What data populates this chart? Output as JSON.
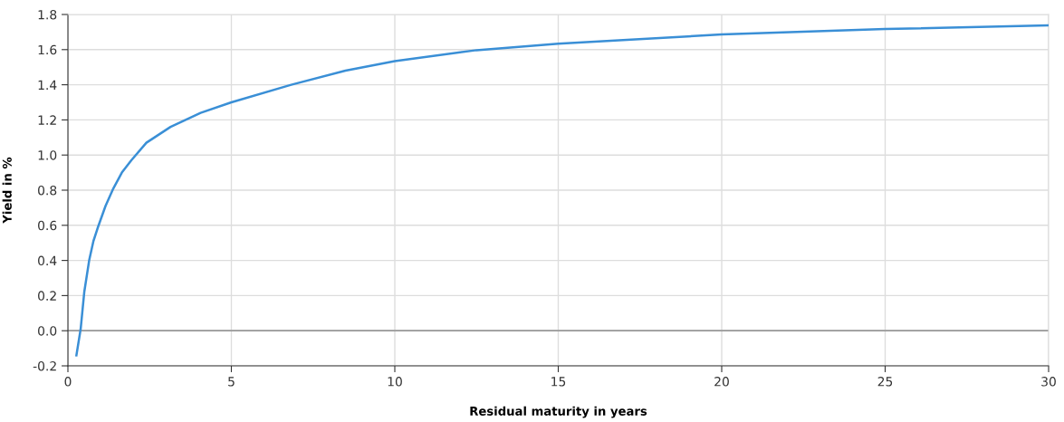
{
  "chart_data": {
    "type": "line",
    "xlabel": "Residual maturity in years",
    "ylabel": "Yield in %",
    "x": [
      0.26,
      0.39,
      0.5,
      0.65,
      0.78,
      0.92,
      1.15,
      1.39,
      1.65,
      1.94,
      2.4,
      3.14,
      4.06,
      5.0,
      6.83,
      8.49,
      10,
      12.5,
      15,
      20,
      25,
      30
    ],
    "series": [
      {
        "color": "#3a8fd6",
        "values": [
          -0.14,
          0.01,
          0.22,
          0.4,
          0.51,
          0.59,
          0.71,
          0.81,
          0.9,
          0.97,
          1.07,
          1.16,
          1.24,
          1.3,
          1.4,
          1.48,
          1.535,
          1.597,
          1.634,
          1.686,
          1.717,
          1.738
        ]
      }
    ],
    "xlim": [
      0,
      30
    ],
    "ylim": [
      -0.2,
      1.8
    ],
    "xticks": [
      0,
      5,
      10,
      15,
      20,
      25,
      30
    ],
    "yticks": [
      {
        "value": -0.2,
        "label": "-0.2"
      },
      {
        "value": 0,
        "label": "0.0"
      },
      {
        "value": 0.2,
        "label": "0.2"
      },
      {
        "value": 0.4,
        "label": "0.4"
      },
      {
        "value": 0.6,
        "label": "0.6"
      },
      {
        "value": 0.8,
        "label": "0.8"
      },
      {
        "value": 1.0,
        "label": "1.0"
      },
      {
        "value": 1.2,
        "label": "1.2"
      },
      {
        "value": 1.4,
        "label": "1.4"
      },
      {
        "value": 1.6,
        "label": "1.6"
      },
      {
        "value": 1.8,
        "label": "1.8"
      }
    ],
    "ref_lines": [
      {
        "axis": "y",
        "value": 0,
        "color": "#999999"
      }
    ],
    "grid": true,
    "marker": "none",
    "line_style": "solid"
  }
}
